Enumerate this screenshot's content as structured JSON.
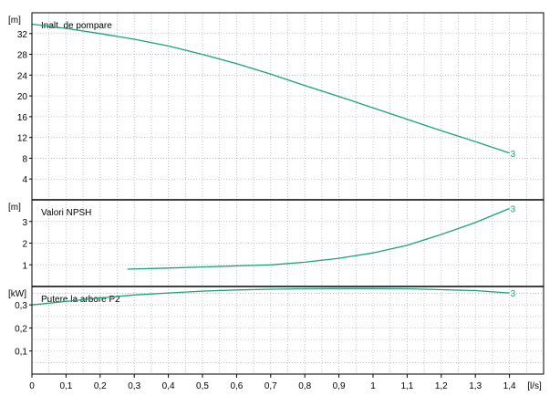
{
  "colors": {
    "background": "#ffffff",
    "grid": "#b4b4b4",
    "frame": "#000000",
    "curve": "#1aa37a"
  },
  "chart_data": [
    {
      "type": "line",
      "title": "Inalt. de pompare",
      "unit_label": "[m]",
      "ylim": [
        0,
        36
      ],
      "yticks": [
        4,
        8,
        12,
        16,
        20,
        24,
        28,
        32
      ],
      "ytick_labels": [
        "4",
        "8",
        "12",
        "16",
        "20",
        "24",
        "28",
        "32"
      ],
      "grid": true,
      "series": [
        {
          "curve_label": "3",
          "x": [
            0,
            0.1,
            0.2,
            0.3,
            0.4,
            0.5,
            0.6,
            0.7,
            0.8,
            0.9,
            1.0,
            1.1,
            1.2,
            1.3,
            1.4
          ],
          "y": [
            33.8,
            33.0,
            32.0,
            30.9,
            29.6,
            28.0,
            26.2,
            24.2,
            22.0,
            19.9,
            17.7,
            15.5,
            13.3,
            11.2,
            9.0
          ]
        }
      ]
    },
    {
      "type": "line",
      "title": "Valori NPSH",
      "unit_label": "[m]",
      "ylim": [
        0,
        4
      ],
      "yticks": [
        1,
        2,
        3
      ],
      "ytick_labels": [
        "1",
        "2",
        "3"
      ],
      "grid": true,
      "series": [
        {
          "curve_label": "3",
          "x": [
            0.28,
            0.4,
            0.5,
            0.6,
            0.7,
            0.8,
            0.9,
            1.0,
            1.1,
            1.2,
            1.3,
            1.4
          ],
          "y": [
            0.8,
            0.85,
            0.9,
            0.95,
            1.0,
            1.12,
            1.3,
            1.55,
            1.9,
            2.4,
            2.95,
            3.6
          ]
        }
      ]
    },
    {
      "type": "line",
      "title": "Putere la arbore P2",
      "unit_label": "[kW]",
      "ylim": [
        0,
        0.38
      ],
      "yticks": [
        0.05,
        0.1,
        0.15,
        0.2,
        0.25,
        0.3,
        0.35
      ],
      "ytick_labels": [
        "",
        "0,1",
        "",
        "0,2",
        "",
        "0,3",
        ""
      ],
      "grid": true,
      "series": [
        {
          "curve_label": "3",
          "x": [
            0,
            0.1,
            0.2,
            0.3,
            0.4,
            0.5,
            0.6,
            0.7,
            0.8,
            0.9,
            1.0,
            1.1,
            1.2,
            1.3,
            1.4
          ],
          "y": [
            0.3,
            0.315,
            0.33,
            0.343,
            0.352,
            0.36,
            0.365,
            0.368,
            0.37,
            0.371,
            0.371,
            0.37,
            0.366,
            0.362,
            0.352
          ]
        }
      ]
    }
  ],
  "x_axis": {
    "unit_label": "[l/s]",
    "xlim": [
      0,
      1.5
    ],
    "ticks": [
      0,
      0.1,
      0.2,
      0.3,
      0.4,
      0.5,
      0.6,
      0.7,
      0.8,
      0.9,
      1.0,
      1.1,
      1.2,
      1.3,
      1.4
    ],
    "tick_labels": [
      "0",
      "0,1",
      "0,2",
      "0,3",
      "0,4",
      "0,5",
      "0,6",
      "0,7",
      "0,8",
      "0,9",
      "1",
      "1,1",
      "1,2",
      "1,3",
      "1,4"
    ]
  }
}
